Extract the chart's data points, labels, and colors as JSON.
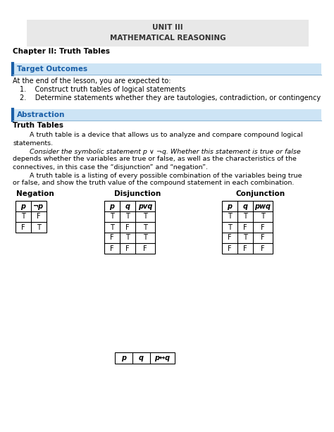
{
  "title_line1": "UNIT III",
  "title_line2": "MATHEMATICAL REASONING",
  "title_bg": "#e8e8e8",
  "chapter": "Chapter II: Truth Tables",
  "section1_label": "Target Outcomes",
  "section1_bg": "#cde4f5",
  "section1_text_color": "#1a5fa8",
  "outcomes_intro": "At the end of the lesson, you are expected to:",
  "outcomes": [
    "Construct truth tables of logical statements",
    "Determine statements whether they are tautologies, contradiction, or contingency"
  ],
  "section2_label": "Abstraction",
  "section2_bg": "#cde4f5",
  "section2_text_color": "#1a5fa8",
  "truth_tables_heading": "Truth Tables",
  "para1a": "        A truth table is a device that allows us to analyze and compare compound logical",
  "para1b": "statements.",
  "para2a": "        Consider the symbolic statement p ∨ ¬q. Whether this statement is true or false",
  "para2b": "depends whether the variables are true or false, as well as the characteristics of the",
  "para2c": "connectives, in this case the “disjunction” and “negation”.",
  "para3a": "        A truth table is a listing of every possible combination of the variables being true",
  "para3b": "or false, and show the truth value of the compound statement in each combination.",
  "neg_label": "Negation",
  "disj_label": "Disjunction",
  "conj_label": "Conjunction",
  "neg_headers": [
    "p",
    "¬p"
  ],
  "neg_data": [
    [
      "T",
      "F"
    ],
    [
      "F",
      "T"
    ]
  ],
  "disj_headers": [
    "p",
    "q",
    "pᴠq"
  ],
  "disj_data": [
    [
      "T",
      "T",
      "T"
    ],
    [
      "T",
      "F",
      "T"
    ],
    [
      "F",
      "T",
      "T"
    ],
    [
      "F",
      "F",
      "F"
    ]
  ],
  "conj_headers": [
    "p",
    "q",
    "pᴡq"
  ],
  "conj_data": [
    [
      "T",
      "T",
      "T"
    ],
    [
      "T",
      "F",
      "F"
    ],
    [
      "F",
      "T",
      "F"
    ],
    [
      "F",
      "F",
      "F"
    ]
  ],
  "bottom_headers": [
    "p",
    "q",
    "p↔q"
  ],
  "bg_color": "#ffffff",
  "text_color": "#000000"
}
